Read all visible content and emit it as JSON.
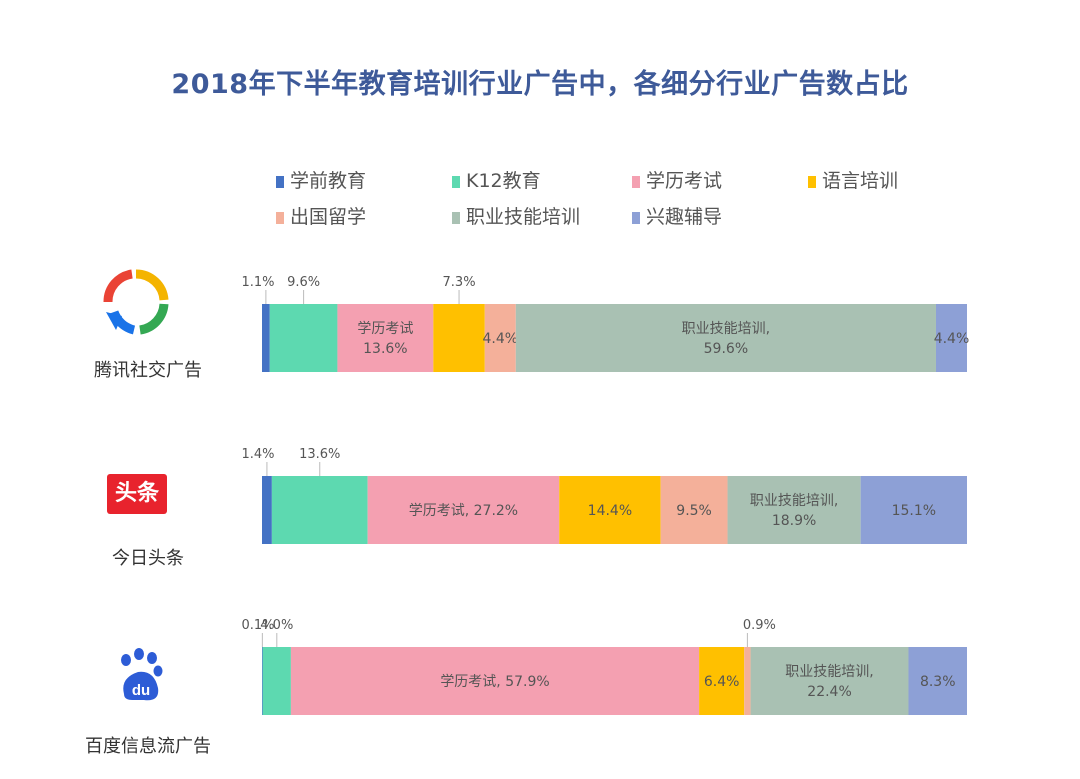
{
  "chart_data": {
    "type": "bar",
    "stacked": true,
    "orientation": "horizontal",
    "percent": true,
    "title": "2018年下半年教育培训行业广告中，各细分行业广告数占比",
    "categories": [
      "腾讯社交广告",
      "今日头条",
      "百度信息流广告"
    ],
    "series": [
      {
        "name": "学前教育",
        "color": "#4472c4",
        "values": [
          1.1,
          1.4,
          0.1
        ]
      },
      {
        "name": "K12教育",
        "color": "#5dd9b0",
        "values": [
          9.6,
          13.6,
          4.0
        ]
      },
      {
        "name": "学历考试",
        "color": "#f4a0b1",
        "values": [
          13.6,
          27.2,
          57.9
        ]
      },
      {
        "name": "语言培训",
        "color": "#ffc000",
        "values": [
          7.3,
          14.4,
          6.4
        ]
      },
      {
        "name": "出国留学",
        "color": "#f4b09a",
        "values": [
          4.4,
          9.5,
          0.9
        ]
      },
      {
        "name": "职业技能培训",
        "color": "#a9c1b3",
        "values": [
          59.6,
          18.9,
          22.4
        ]
      },
      {
        "name": "兴趣辅导",
        "color": "#8da0d6",
        "values": [
          4.4,
          15.1,
          8.3
        ]
      }
    ],
    "xlim": [
      0,
      100
    ],
    "legend_position": "top",
    "grid": false,
    "data_labels": [
      [
        "1.1%",
        "9.6%",
        "学历考试\n13.6%",
        "7.3%",
        "4.4%",
        "职业技能培训,\n59.6%",
        "4.4%"
      ],
      [
        "1.4%",
        "13.6%",
        "学历考试, 27.2%",
        "14.4%",
        "9.5%",
        "职业技能培训,\n18.9%",
        "15.1%"
      ],
      [
        "0.1%",
        "4.0%",
        "学历考试, 57.9%",
        "6.4%",
        "0.9%",
        "职业技能培训,\n22.4%",
        "8.3%"
      ]
    ],
    "label_inside": [
      [
        false,
        false,
        true,
        false,
        true,
        true,
        true
      ],
      [
        false,
        false,
        true,
        true,
        true,
        true,
        true
      ],
      [
        false,
        false,
        true,
        true,
        false,
        true,
        true
      ]
    ]
  },
  "logos": {
    "toutiao_text": "头条",
    "baidu_text": "du"
  }
}
